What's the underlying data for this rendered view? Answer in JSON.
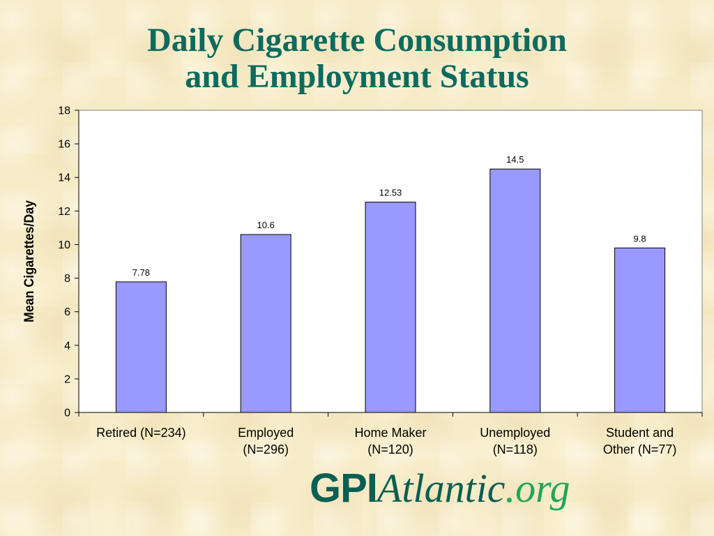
{
  "slide": {
    "title_line1": "Daily Cigarette Consumption",
    "title_line2": "and Employment Status"
  },
  "logo": {
    "part1": "GPI",
    "part2": "Atlantic",
    "part3": ".org"
  },
  "colors": {
    "title": "#0d6b5e",
    "bar_fill": "#9999ff",
    "bar_stroke": "#000000",
    "plot_background": "#ffffff",
    "logo_dark": "#0a5e52",
    "logo_green": "#22a55a"
  },
  "chart_data": {
    "type": "bar",
    "categories": [
      [
        "Retired (N=234)"
      ],
      [
        "Employed",
        "(N=296)"
      ],
      [
        "Home Maker",
        "(N=120)"
      ],
      [
        "Unemployed",
        "(N=118)"
      ],
      [
        "Student and",
        "Other (N=77)"
      ]
    ],
    "values": [
      7.78,
      10.6,
      12.53,
      14.5,
      9.8
    ],
    "data_labels": [
      "7.78",
      "10.6",
      "12.53",
      "14.5",
      "9.8"
    ],
    "ylabel": "Mean Cigarettes/Day",
    "ylim": [
      0,
      18
    ],
    "yticks": [
      0,
      2,
      4,
      6,
      8,
      10,
      12,
      14,
      16,
      18
    ],
    "grid": false,
    "legend": "none"
  }
}
